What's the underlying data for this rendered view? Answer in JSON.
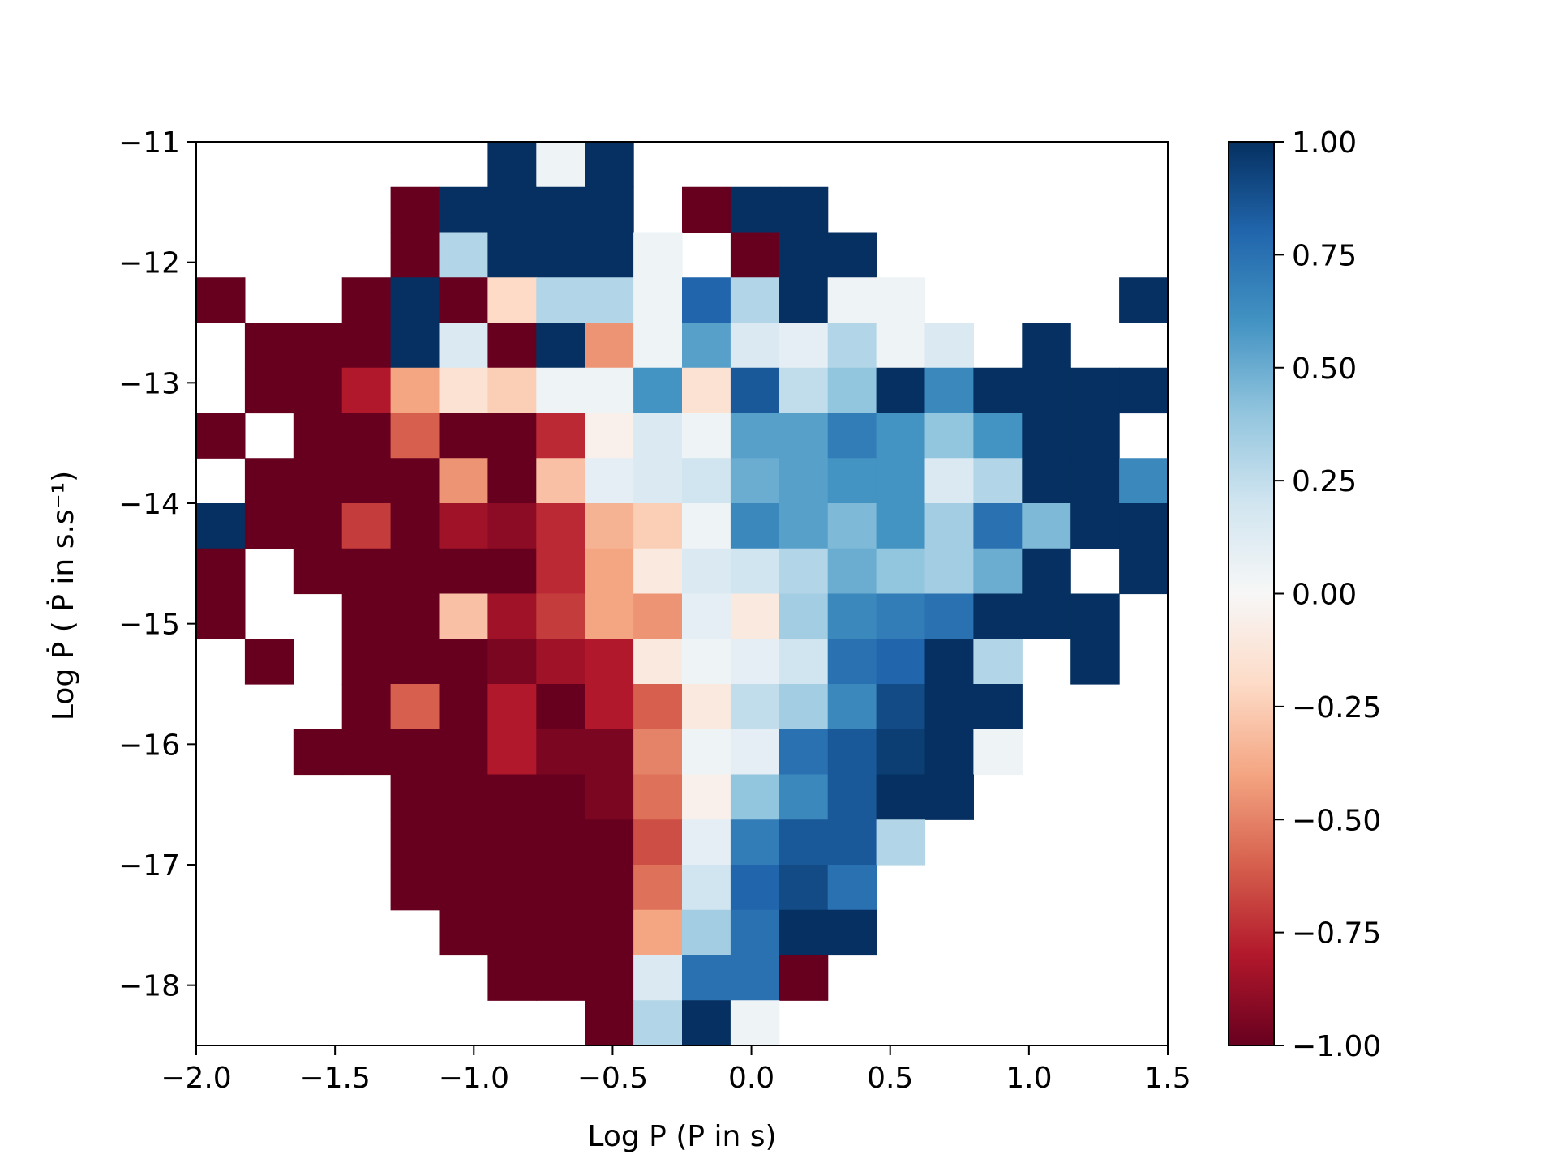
{
  "chart_data": {
    "type": "heatmap",
    "title": "",
    "xlabel": "Log P (P in s)",
    "ylabel": "Log Ṗ ( Ṗ in s.s⁻¹)",
    "xlim": [
      -2.0,
      1.5
    ],
    "ylim": [
      -18.5,
      -11.0
    ],
    "x_ticks": [
      -2.0,
      -1.5,
      -1.0,
      -0.5,
      0.0,
      0.5,
      1.0,
      1.5
    ],
    "x_tick_labels": [
      "−2.0",
      "−1.5",
      "−1.0",
      "−0.5",
      "0.0",
      "0.5",
      "1.0",
      "1.5"
    ],
    "y_ticks": [
      -11,
      -12,
      -13,
      -14,
      -15,
      -16,
      -17,
      -18
    ],
    "y_tick_labels": [
      "−11",
      "−12",
      "−13",
      "−14",
      "−15",
      "−16",
      "−17",
      "−18"
    ],
    "colorbar": {
      "colormap": "RdBu",
      "vmin": -1.0,
      "vmax": 1.0,
      "ticks": [
        1.0,
        0.75,
        0.5,
        0.25,
        0.0,
        -0.25,
        -0.5,
        -0.75,
        -1.0
      ],
      "tick_labels": [
        "1.00",
        "0.75",
        "0.50",
        "0.25",
        "0.00",
        "−0.25",
        "−0.50",
        "−0.75",
        "−1.00"
      ]
    },
    "grid": false,
    "values": [
      [
        null,
        null,
        null,
        null,
        null,
        null,
        1.0,
        0.05,
        1.0,
        null,
        null,
        null,
        null,
        null,
        null,
        null,
        null,
        null,
        null,
        null
      ],
      [
        null,
        null,
        null,
        null,
        -1.0,
        1.0,
        1.0,
        1.0,
        1.0,
        null,
        -1.0,
        1.0,
        1.0,
        null,
        null,
        null,
        null,
        null,
        null,
        null
      ],
      [
        null,
        null,
        null,
        null,
        -1.0,
        0.3,
        1.0,
        1.0,
        1.0,
        0.05,
        null,
        -1.0,
        1.0,
        1.0,
        null,
        null,
        null,
        null,
        null,
        null
      ],
      [
        -1.0,
        null,
        null,
        -1.0,
        1.0,
        -1.0,
        -0.2,
        0.3,
        0.3,
        0.05,
        0.8,
        0.3,
        1.0,
        0.05,
        0.05,
        null,
        null,
        null,
        null,
        1.0
      ],
      [
        null,
        -1.0,
        -1.0,
        -1.0,
        1.0,
        0.15,
        -1.0,
        1.0,
        -0.45,
        0.05,
        0.55,
        0.15,
        0.1,
        0.3,
        0.05,
        0.15,
        null,
        1.0,
        null,
        null
      ],
      [
        null,
        -1.0,
        -1.0,
        -0.8,
        -0.4,
        -0.15,
        -0.25,
        0.05,
        0.05,
        0.6,
        -0.15,
        0.85,
        0.25,
        0.4,
        1.0,
        0.65,
        1.0,
        1.0,
        1.0,
        1.0
      ],
      [
        -1.0,
        null,
        -1.0,
        -1.0,
        -0.6,
        -1.0,
        -1.0,
        -0.75,
        -0.05,
        0.15,
        0.05,
        0.55,
        0.55,
        0.7,
        0.6,
        0.4,
        0.6,
        1.0,
        1.0,
        null
      ],
      [
        null,
        -1.0,
        -1.0,
        -1.0,
        -1.0,
        -0.45,
        -1.0,
        -0.3,
        0.1,
        0.15,
        0.2,
        0.5,
        0.55,
        0.6,
        0.6,
        0.15,
        0.3,
        1.0,
        1.0,
        0.65
      ],
      [
        1.0,
        -1.0,
        -1.0,
        -0.7,
        -1.0,
        -0.85,
        -0.9,
        -0.75,
        -0.35,
        -0.25,
        0.05,
        0.65,
        0.55,
        0.45,
        0.6,
        0.35,
        0.75,
        0.45,
        1.0,
        1.0
      ],
      [
        -1.0,
        null,
        -1.0,
        -1.0,
        -1.0,
        -1.0,
        -1.0,
        -0.75,
        -0.4,
        -0.1,
        0.15,
        0.2,
        0.3,
        0.5,
        0.4,
        0.35,
        0.5,
        1.0,
        null,
        1.0
      ],
      [
        -1.0,
        null,
        null,
        -1.0,
        -1.0,
        -0.3,
        -0.85,
        -0.7,
        -0.4,
        -0.45,
        0.1,
        -0.1,
        0.35,
        0.65,
        0.7,
        0.75,
        1.0,
        1.0,
        1.0,
        null
      ],
      [
        null,
        -1.0,
        null,
        -1.0,
        -1.0,
        -1.0,
        -0.95,
        -0.85,
        -0.8,
        -0.1,
        0.05,
        0.1,
        0.2,
        0.75,
        0.8,
        1.0,
        0.3,
        null,
        1.0,
        null
      ],
      [
        null,
        null,
        null,
        -1.0,
        -0.6,
        -1.0,
        -0.8,
        -1.0,
        -0.8,
        -0.6,
        -0.1,
        0.25,
        0.35,
        0.65,
        0.9,
        1.0,
        1.0,
        null,
        null,
        null
      ],
      [
        null,
        null,
        -1.0,
        -1.0,
        -1.0,
        -1.0,
        -0.8,
        -0.95,
        -0.95,
        -0.5,
        0.05,
        0.1,
        0.75,
        0.85,
        0.95,
        1.0,
        0.05,
        null,
        null,
        null
      ],
      [
        null,
        null,
        null,
        null,
        -1.0,
        -1.0,
        -1.0,
        -1.0,
        -0.95,
        -0.55,
        -0.05,
        0.4,
        0.65,
        0.85,
        1.0,
        1.0,
        null,
        null,
        null,
        null
      ],
      [
        null,
        null,
        null,
        null,
        -1.0,
        -1.0,
        -1.0,
        -1.0,
        -1.0,
        -0.65,
        0.1,
        0.7,
        0.85,
        0.85,
        0.3,
        null,
        null,
        null,
        null,
        null
      ],
      [
        null,
        null,
        null,
        null,
        -1.0,
        -1.0,
        -1.0,
        -1.0,
        -1.0,
        -0.55,
        0.2,
        0.8,
        0.9,
        0.75,
        null,
        null,
        null,
        null,
        null,
        null
      ],
      [
        null,
        null,
        null,
        null,
        null,
        -1.0,
        -1.0,
        -1.0,
        -1.0,
        -0.4,
        0.35,
        0.75,
        1.0,
        1.0,
        null,
        null,
        null,
        null,
        null,
        null
      ],
      [
        null,
        null,
        null,
        null,
        null,
        null,
        -1.0,
        -1.0,
        -1.0,
        0.15,
        0.75,
        0.75,
        -1.0,
        null,
        null,
        null,
        null,
        null,
        null,
        null
      ],
      [
        null,
        null,
        null,
        null,
        null,
        null,
        null,
        null,
        -1.0,
        0.3,
        1.0,
        0.05,
        null,
        null,
        null,
        null,
        null,
        null,
        null,
        null
      ]
    ]
  }
}
